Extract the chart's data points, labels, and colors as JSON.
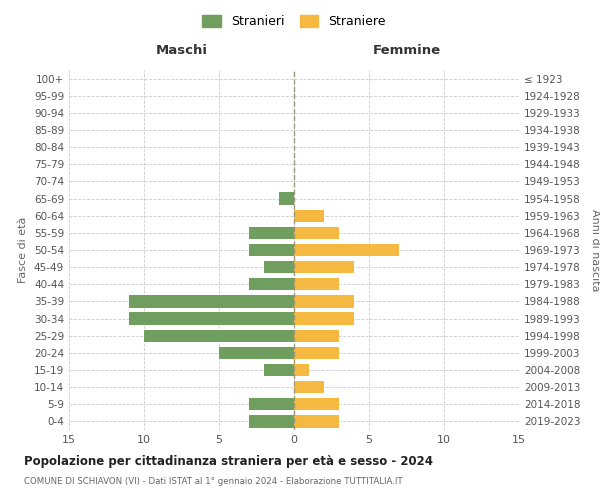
{
  "age_groups": [
    "0-4",
    "5-9",
    "10-14",
    "15-19",
    "20-24",
    "25-29",
    "30-34",
    "35-39",
    "40-44",
    "45-49",
    "50-54",
    "55-59",
    "60-64",
    "65-69",
    "70-74",
    "75-79",
    "80-84",
    "85-89",
    "90-94",
    "95-99",
    "100+"
  ],
  "birth_years": [
    "2019-2023",
    "2014-2018",
    "2009-2013",
    "2004-2008",
    "1999-2003",
    "1994-1998",
    "1989-1993",
    "1984-1988",
    "1979-1983",
    "1974-1978",
    "1969-1973",
    "1964-1968",
    "1959-1963",
    "1954-1958",
    "1949-1953",
    "1944-1948",
    "1939-1943",
    "1934-1938",
    "1929-1933",
    "1924-1928",
    "≤ 1923"
  ],
  "males": [
    3,
    3,
    0,
    2,
    5,
    10,
    11,
    11,
    3,
    2,
    3,
    3,
    0,
    1,
    0,
    0,
    0,
    0,
    0,
    0,
    0
  ],
  "females": [
    3,
    3,
    2,
    1,
    3,
    3,
    4,
    4,
    3,
    4,
    7,
    3,
    2,
    0,
    0,
    0,
    0,
    0,
    0,
    0,
    0
  ],
  "male_color": "#6f9e5e",
  "female_color": "#f5b942",
  "grid_color": "#cccccc",
  "title": "Popolazione per cittadinanza straniera per età e sesso - 2024",
  "subtitle": "COMUNE DI SCHIAVON (VI) - Dati ISTAT al 1° gennaio 2024 - Elaborazione TUTTITALIA.IT",
  "legend_male": "Stranieri",
  "legend_female": "Straniere",
  "header_left": "Maschi",
  "header_right": "Femmine",
  "ylabel_left": "Fasce di età",
  "ylabel_right": "Anni di nascita",
  "xlim": 15,
  "background_color": "#ffffff"
}
